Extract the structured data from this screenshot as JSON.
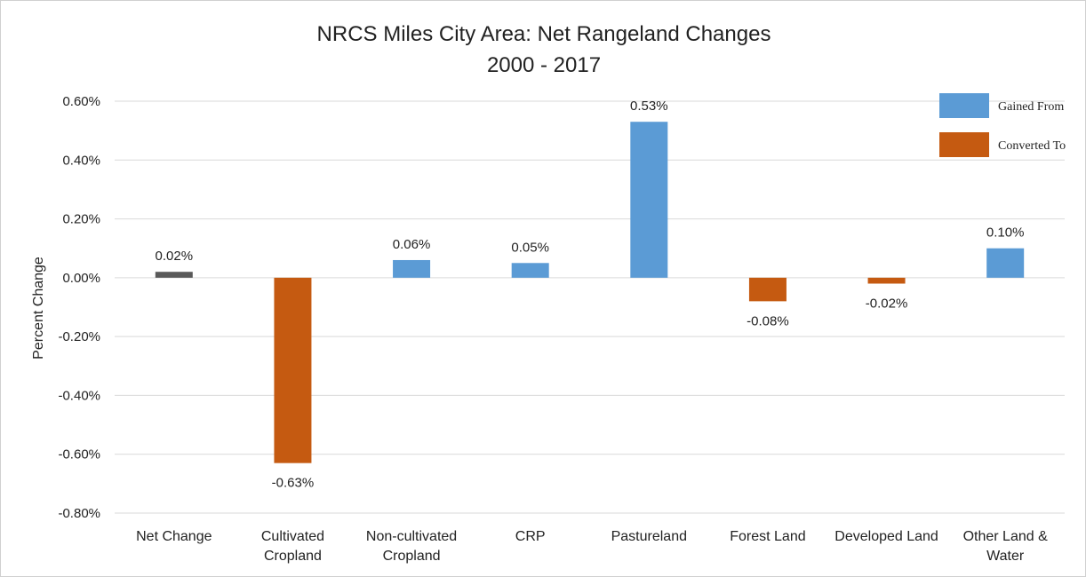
{
  "chart_data": {
    "type": "bar",
    "title": "NRCS Miles City Area: Net Rangeland Changes",
    "subtitle": "2000 - 2017",
    "ylabel": "Percent Change",
    "xlabel": "",
    "ylim": [
      -0.8,
      0.6
    ],
    "yticks": [
      0.6,
      0.4,
      0.2,
      0.0,
      -0.2,
      -0.4,
      -0.6,
      -0.8
    ],
    "ytick_labels": [
      "0.60%",
      "0.40%",
      "0.20%",
      "0.00%",
      "-0.20%",
      "-0.40%",
      "-0.60%",
      "-0.80%"
    ],
    "grid": true,
    "legend_position": "top-right",
    "categories": [
      [
        "Net Change"
      ],
      [
        "Cultivated",
        "Cropland"
      ],
      [
        "Non-cultivated",
        "Cropland"
      ],
      [
        "CRP"
      ],
      [
        "Pastureland"
      ],
      [
        "Forest Land"
      ],
      [
        "Developed Land"
      ],
      [
        "Other Land &",
        "Water"
      ]
    ],
    "values": [
      0.02,
      -0.63,
      0.06,
      0.05,
      0.53,
      -0.08,
      -0.02,
      0.1
    ],
    "data_labels": [
      "0.02%",
      "-0.63%",
      "0.06%",
      "0.05%",
      "0.53%",
      "-0.08%",
      "-0.02%",
      "0.10%"
    ],
    "bar_groups": [
      "net",
      "converted",
      "gained",
      "gained",
      "gained",
      "converted",
      "converted",
      "gained"
    ],
    "legend": [
      {
        "label": "Gained From",
        "group": "gained"
      },
      {
        "label": "Converted To",
        "group": "converted"
      }
    ],
    "colors": {
      "gained": "#5b9bd5",
      "converted": "#c55a11",
      "net": "#595959",
      "grid": "#d9d9d9"
    }
  }
}
